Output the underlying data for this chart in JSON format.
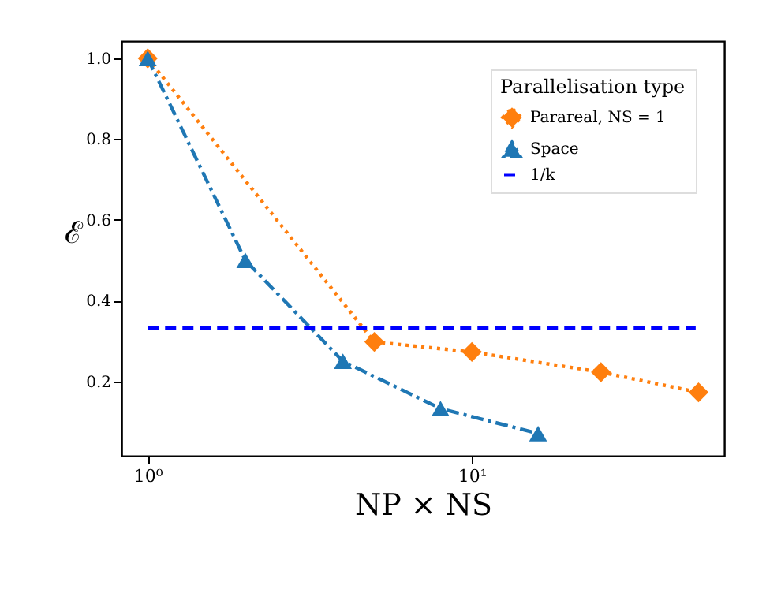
{
  "chart_data": {
    "type": "line",
    "xlabel": "NP × NS",
    "ylabel": "ℰ",
    "legend_title": "Parallelisation type",
    "legend": "top right",
    "log": "x",
    "grid": false,
    "xlim": [
      0.83,
      60
    ],
    "xticks": [
      {
        "value": 1,
        "label": "10⁰"
      },
      {
        "value": 10,
        "label": "10¹"
      }
    ],
    "ylim": [
      0.016,
      1.043
    ],
    "yticks": [
      0.2,
      0.4,
      0.6,
      {
        "value": 0.8,
        "label": "0.8"
      },
      {
        "value": 1,
        "label": "1.0"
      }
    ],
    "series": [
      {
        "name": "Parareal, NS = 1",
        "color": "#ff7f0e",
        "marker": "diamond",
        "line_style": "dotted",
        "x": [
          1,
          5,
          10,
          25,
          50
        ],
        "values": [
          1.0,
          0.298,
          0.273,
          0.223,
          0.173
        ]
      },
      {
        "name": "Space",
        "color": "#1f77b4",
        "marker": "triangle",
        "line_style": "dashdot",
        "x": [
          1,
          2,
          4,
          8,
          16
        ],
        "values": [
          1.0,
          0.5,
          0.25,
          0.133,
          0.071
        ]
      },
      {
        "name": "1/k",
        "color": "#0000ff",
        "marker": "none",
        "line_style": "dashed",
        "x": [
          1,
          49
        ],
        "values": [
          0.332,
          0.332
        ]
      }
    ]
  }
}
